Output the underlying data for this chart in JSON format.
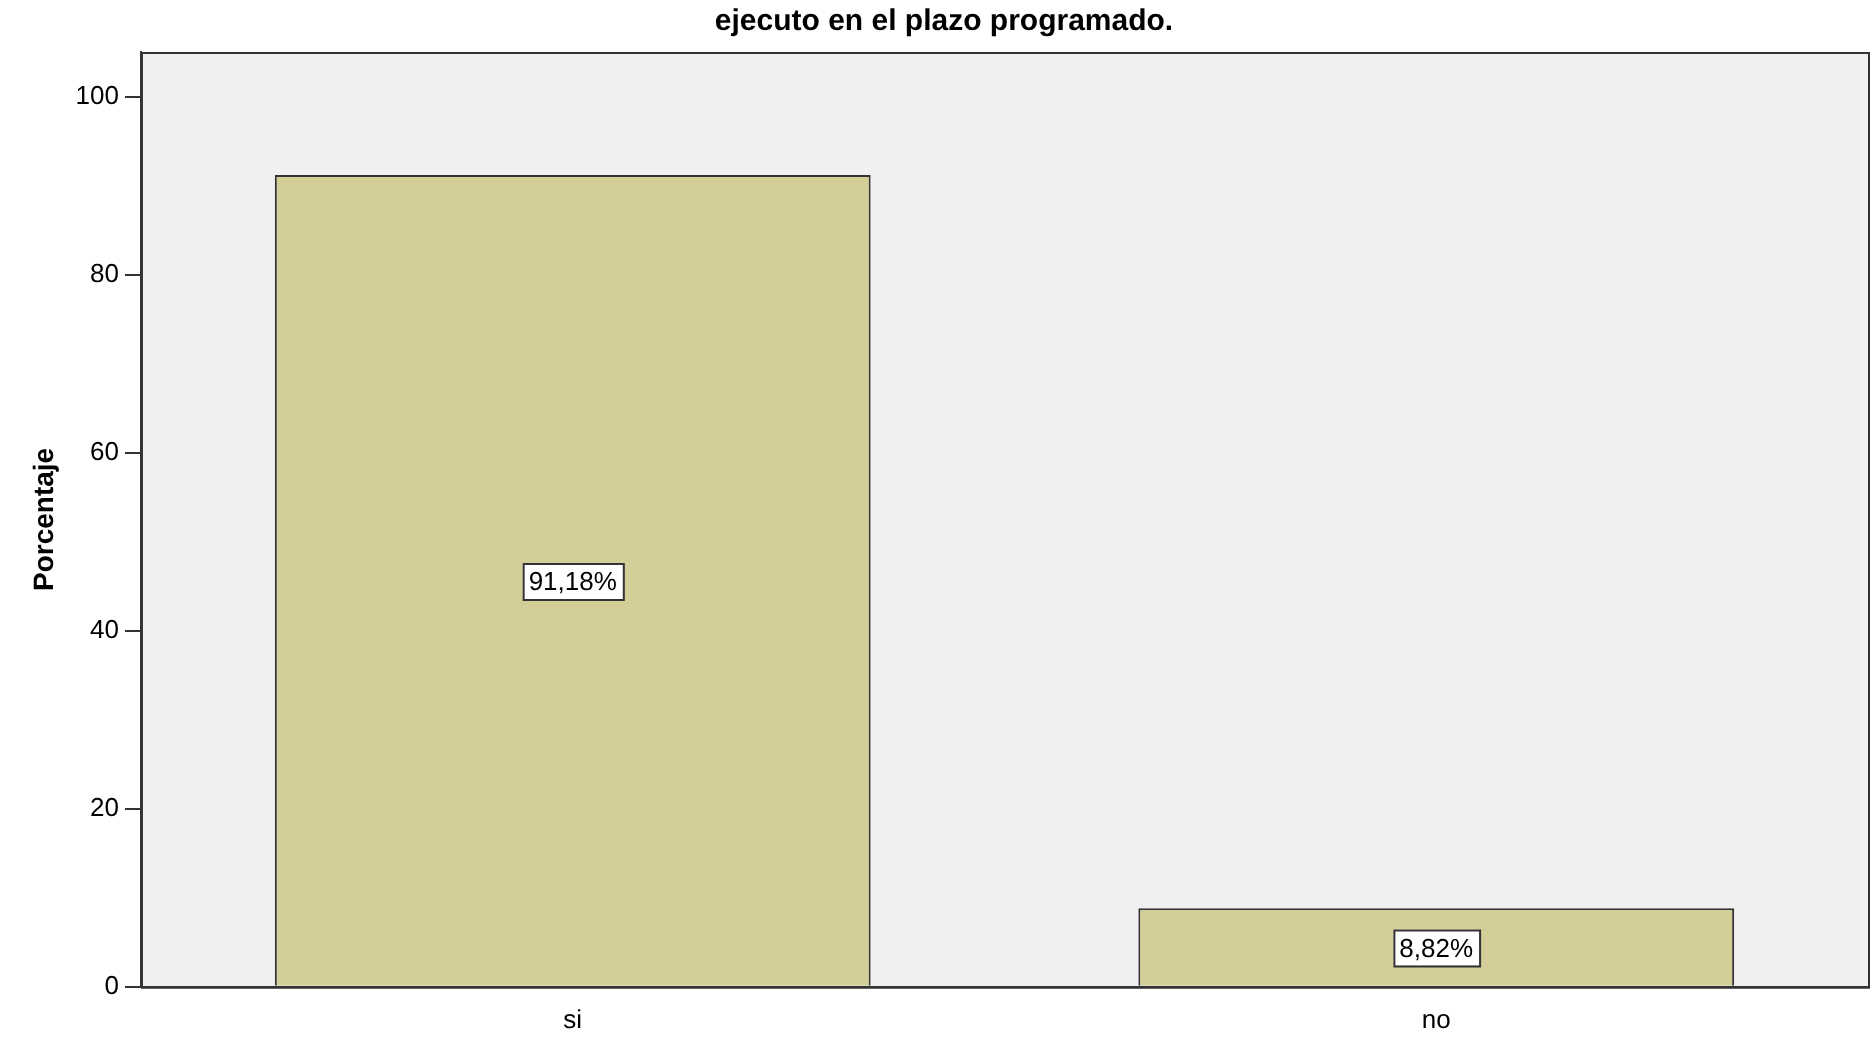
{
  "chart_data": {
    "type": "bar",
    "title": "ejecuto en el plazo programado.",
    "ylabel": "Porcentaje",
    "categories": [
      "si",
      "no"
    ],
    "values": [
      91.18,
      8.82
    ],
    "value_labels": [
      "91,18%",
      "8,82%"
    ],
    "color": "#d3ce97",
    "ylim": [
      0,
      105
    ],
    "yticks": [
      0,
      20,
      40,
      60,
      80,
      100
    ],
    "grid": false,
    "legend": false
  }
}
